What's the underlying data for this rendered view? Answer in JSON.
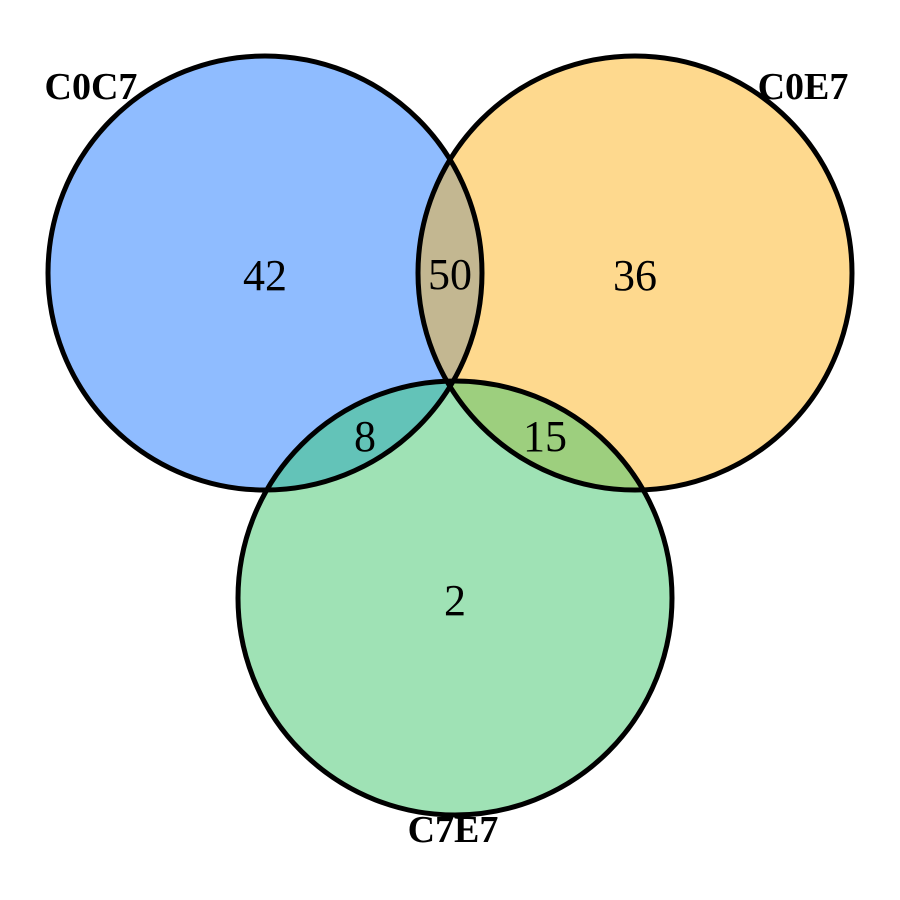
{
  "sets": [
    {
      "id": "c0c7",
      "label": "C0C7",
      "color": "#8fbcff"
    },
    {
      "id": "c0e7",
      "label": "C0E7",
      "color": "#fed98e"
    },
    {
      "id": "c7e7",
      "label": "C7E7",
      "color": "#9fe2b5"
    }
  ],
  "regions": {
    "c0c7_only": "42",
    "c0e7_only": "36",
    "c7e7_only": "2",
    "c0c7_c0e7": "50",
    "c0c7_c7e7": "8",
    "c0e7_c7e7": "15",
    "all_three": ""
  },
  "overlap_colors": {
    "c0c7_c0e7": "#c3b791",
    "c0c7_c7e7": "#63c3b8",
    "c0e7_c7e7": "#9dcf7e"
  },
  "outline_color": "#000000"
}
